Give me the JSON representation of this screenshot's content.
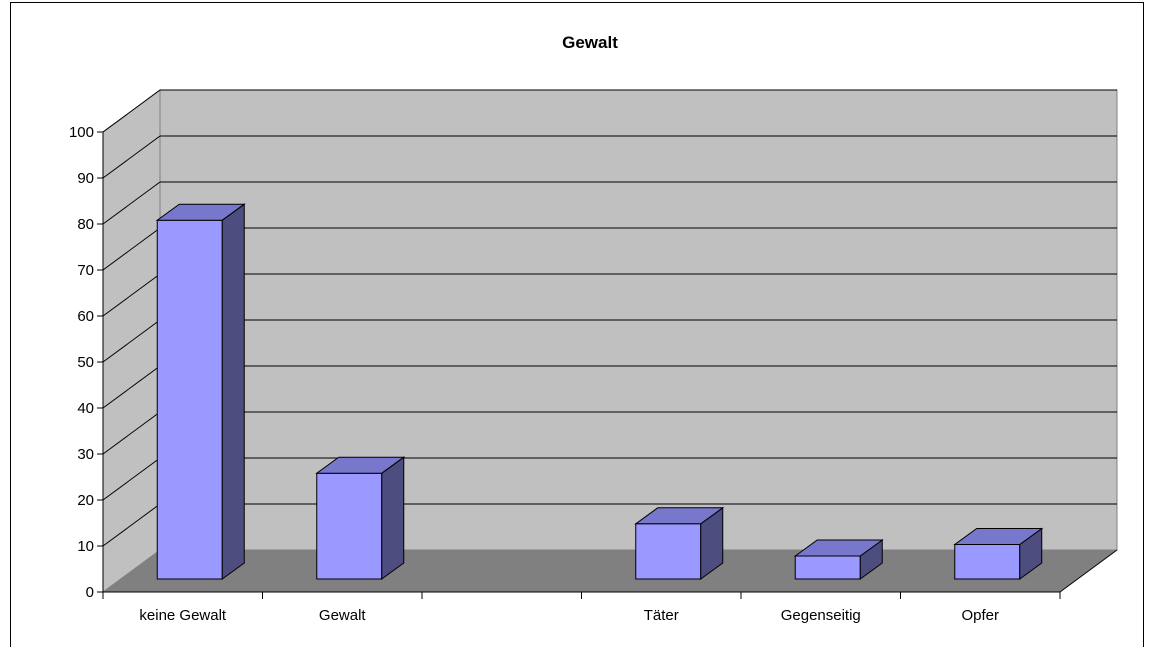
{
  "chart_data": {
    "type": "bar",
    "title": "Gewalt",
    "categories": [
      "keine Gewalt",
      "Gewalt",
      "",
      "Täter",
      "Gegenseitig",
      "Opfer"
    ],
    "values": [
      78,
      23,
      0,
      12,
      5,
      7.5
    ],
    "ylim": [
      0,
      100
    ],
    "yticks": [
      "0",
      "10",
      "20",
      "30",
      "40",
      "50",
      "60",
      "70",
      "80",
      "90",
      "100"
    ],
    "xlabel": "",
    "ylabel": "",
    "grid": true,
    "legend": "none",
    "style": "3d-column",
    "colors": {
      "bar_front": "#9999FF",
      "bar_top": "#7777CC",
      "bar_side": "#4D4D80",
      "back_wall": "#C0C0C0",
      "side_wall": "#C0C0C0",
      "floor": "#808080",
      "gridline": "#000000"
    }
  }
}
